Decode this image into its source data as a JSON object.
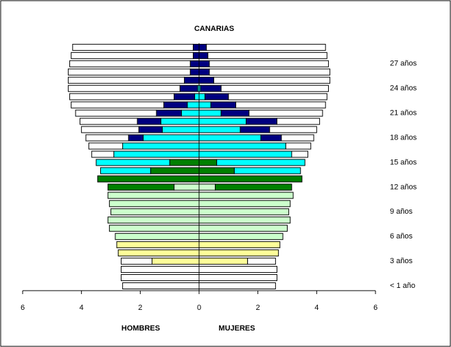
{
  "chart_data": {
    "type": "pyramid",
    "title": "CANARIAS",
    "left_label": "HOMBRES",
    "right_label": "MUJERES",
    "categories": [
      "< 1 año",
      null,
      null,
      "3 años",
      null,
      null,
      "6 años",
      null,
      null,
      "9 años",
      null,
      null,
      "12 años",
      null,
      null,
      "15 años",
      null,
      null,
      "18 años",
      null,
      null,
      "21 años",
      null,
      null,
      "24 años",
      null,
      null,
      "27 años",
      null,
      null
    ],
    "xlim": [
      -6,
      6
    ],
    "xticks": [
      {
        "value": -6,
        "label": "6"
      },
      {
        "value": -4,
        "label": "4"
      },
      {
        "value": -2,
        "label": "2"
      },
      0,
      2,
      4,
      6
    ],
    "series": [
      {
        "side": "left",
        "color": "#ffff99",
        "values": [
          0,
          0,
          0,
          1.6,
          2.75,
          2.8,
          0,
          0,
          0,
          0,
          0,
          0,
          0,
          0,
          0,
          0,
          0,
          0,
          0,
          0,
          0,
          0,
          0,
          0,
          0,
          0,
          0,
          0,
          0,
          0
        ]
      },
      {
        "side": "left",
        "color": "#ccffcc",
        "values": [
          0,
          0,
          0,
          0,
          0,
          0,
          2.85,
          3.05,
          3.1,
          3.0,
          3.05,
          3.1,
          0.85,
          0,
          0,
          0,
          0,
          0,
          0,
          0,
          0,
          0,
          0,
          0,
          0,
          0,
          0,
          0,
          0,
          0
        ]
      },
      {
        "side": "left",
        "color": "#008000",
        "values": [
          0,
          0,
          0,
          0,
          0,
          0,
          0,
          0,
          0,
          0,
          0,
          0,
          2.25,
          3.45,
          1.65,
          1.0,
          0,
          0,
          0,
          0,
          0,
          0,
          0,
          0,
          0,
          0,
          0,
          0,
          0,
          0
        ]
      },
      {
        "side": "left",
        "color": "#00ffff",
        "values": [
          0,
          0,
          0,
          0,
          0,
          0,
          0,
          0,
          0,
          0,
          0,
          0,
          0,
          0,
          1.7,
          2.5,
          2.9,
          2.6,
          1.9,
          1.25,
          1.3,
          0.6,
          0.4,
          0.15,
          0.05,
          0,
          0,
          0,
          0,
          0
        ]
      },
      {
        "side": "left",
        "color": "#000080",
        "values": [
          0,
          0,
          0,
          0,
          0,
          0,
          0,
          0,
          0,
          0,
          0,
          0,
          0,
          0,
          0,
          0,
          0,
          0,
          0.5,
          0.8,
          0.8,
          0.85,
          0.8,
          0.7,
          0.6,
          0.5,
          0.3,
          0.3,
          0.2,
          0.2
        ]
      },
      {
        "side": "left",
        "color": "#ffffff",
        "values": [
          2.6,
          2.65,
          2.65,
          1.05,
          0,
          0,
          0,
          0,
          0,
          0,
          0,
          0,
          0,
          0,
          0,
          0,
          0.75,
          1.15,
          1.45,
          1.95,
          1.95,
          2.75,
          3.15,
          3.55,
          3.8,
          3.95,
          4.15,
          4.1,
          4.15,
          4.1
        ]
      },
      {
        "side": "right",
        "color": "#ffff99",
        "values": [
          0,
          0,
          0,
          1.65,
          2.7,
          2.75,
          0,
          0,
          0,
          0,
          0,
          0,
          0,
          0,
          0,
          0,
          0,
          0,
          0,
          0,
          0,
          0,
          0,
          0,
          0,
          0,
          0,
          0,
          0,
          0
        ]
      },
      {
        "side": "right",
        "color": "#ccffcc",
        "values": [
          0,
          0,
          0,
          0,
          0,
          0,
          2.85,
          3.0,
          3.1,
          3.05,
          3.1,
          3.2,
          0.55,
          0,
          0,
          0,
          0,
          0,
          0,
          0,
          0,
          0,
          0,
          0,
          0,
          0,
          0,
          0,
          0,
          0
        ]
      },
      {
        "side": "right",
        "color": "#008000",
        "values": [
          0,
          0,
          0,
          0,
          0,
          0,
          0,
          0,
          0,
          0,
          0,
          0,
          2.6,
          3.5,
          1.2,
          0.6,
          0,
          0,
          0,
          0,
          0,
          0,
          0,
          0,
          0,
          0,
          0,
          0,
          0,
          0
        ]
      },
      {
        "side": "right",
        "color": "#00ffff",
        "values": [
          0,
          0,
          0,
          0,
          0,
          0,
          0,
          0,
          0,
          0,
          0,
          0,
          0,
          0,
          2.25,
          3.0,
          3.15,
          2.95,
          2.1,
          1.4,
          1.6,
          0.75,
          0.4,
          0.2,
          0.05,
          0,
          0,
          0,
          0,
          0
        ]
      },
      {
        "side": "right",
        "color": "#000080",
        "values": [
          0,
          0,
          0,
          0,
          0,
          0,
          0,
          0,
          0,
          0,
          0,
          0,
          0,
          0,
          0,
          0,
          0,
          0,
          0.7,
          1.0,
          1.05,
          0.95,
          0.85,
          0.8,
          0.7,
          0.5,
          0.35,
          0.35,
          0.3,
          0.25
        ]
      },
      {
        "side": "right",
        "color": "#ffffff",
        "values": [
          2.6,
          2.65,
          2.65,
          0.95,
          0,
          0,
          0,
          0,
          0,
          0,
          0,
          0,
          0,
          0,
          0,
          0,
          0.55,
          0.85,
          1.1,
          1.6,
          1.45,
          2.5,
          3.05,
          3.35,
          3.65,
          3.95,
          4.1,
          4.05,
          4.05,
          4.05
        ]
      }
    ]
  }
}
